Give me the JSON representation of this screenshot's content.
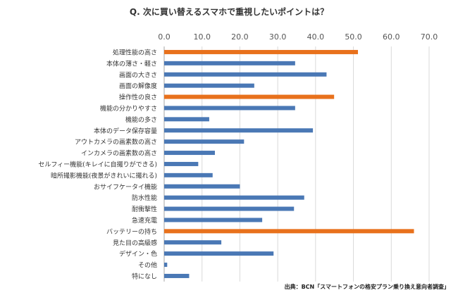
{
  "chart_data": {
    "type": "bar",
    "orientation": "horizontal",
    "title": "Q. 次に買い替えるスマホで重視したいポイントは？",
    "xlim": [
      0,
      70
    ],
    "ticks": [
      0,
      10,
      20,
      30,
      40,
      50,
      60,
      70
    ],
    "tick_labels": [
      "0.0",
      "10.0",
      "20.0",
      "30.0",
      "40.0",
      "50.0",
      "60.0",
      "70.0"
    ],
    "axis_position": "top",
    "grid": true,
    "categories": [
      "処理性能の高さ",
      "本体の薄さ・軽さ",
      "画面の大きさ",
      "画面の解像度",
      "操作性の良さ",
      "機能の分かりやすさ",
      "機能の多さ",
      "本体のデータ保存容量",
      "アウトカメラの画素数の高さ",
      "インカメラの画素数の高さ",
      "セルフィー機能(キレイに自撮りができる)",
      "暗所撮影機能(夜景がきれいに撮れる)",
      "おサイフケータイ機能",
      "防水性能",
      "耐衝撃性",
      "急速充電",
      "バッテリーの持ち",
      "見た目の高級感",
      "デザイン・色",
      "その他",
      "特になし"
    ],
    "values": [
      51.2,
      34.6,
      42.9,
      23.8,
      44.9,
      34.6,
      11.9,
      39.3,
      21.1,
      13.4,
      9.0,
      12.8,
      20.0,
      37.0,
      34.3,
      25.9,
      66.0,
      15.1,
      28.9,
      0.8,
      6.6
    ],
    "highlight": [
      true,
      false,
      false,
      false,
      true,
      false,
      false,
      false,
      false,
      false,
      false,
      false,
      false,
      false,
      false,
      false,
      true,
      false,
      false,
      false,
      false
    ],
    "colors": {
      "normal": "#4a78b5",
      "highlight": "#e8711c",
      "grid": "#d9d9d9",
      "axis": "#a6a6a6"
    }
  },
  "source": "出典：BCN「スマートフォンの格安プラン乗り換え意向者調査」"
}
